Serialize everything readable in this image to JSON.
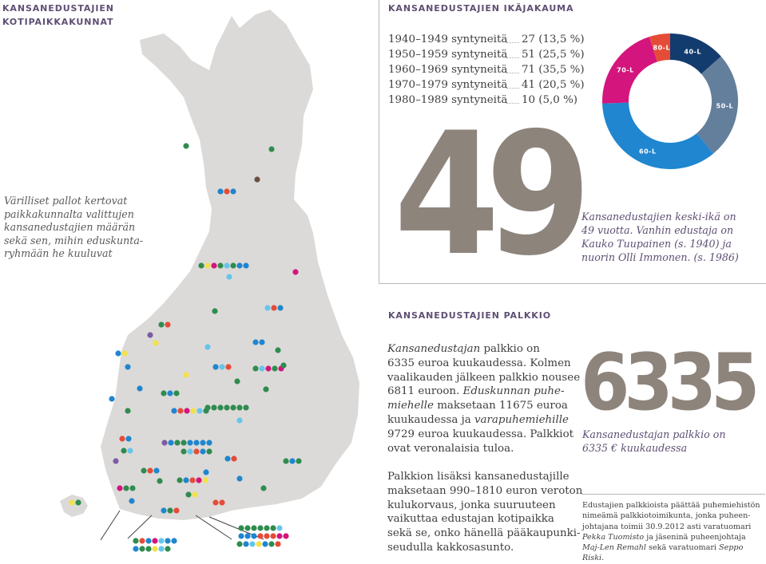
{
  "headers": {
    "residence": [
      "KANSANEDUSTAJIEN",
      "KOTIPAIKKAKUNNAT"
    ],
    "age": "KANSANEDUSTAJIEN IKÄJAKAUMA",
    "pay": "KANSANEDUSTAJIEN PALKKIO"
  },
  "map_caption": [
    "Värilliset pallot kertovat",
    "paikkakunnalta valittujen",
    "kansanedustajien määrän",
    "sekä sen, mihin eduskunta-",
    "ryhmään he kuuluvat"
  ],
  "age_distribution": [
    {
      "label": "1940–1949 syntyneitä",
      "value": "27 (13,5 %)"
    },
    {
      "label": "1950–1959 syntyneitä",
      "value": "51 (25,5 %)"
    },
    {
      "label": "1960–1969 syntyneitä",
      "value": "71 (35,5 %)"
    },
    {
      "label": "1970–1979 syntyneitä",
      "value": "41 (20,5 %)"
    },
    {
      "label": "1980–1989 syntyneitä",
      "value": "10 (5,0 %)"
    }
  ],
  "donut": {
    "segments": [
      {
        "label": "40-L",
        "count": 27,
        "color": "#133c6e"
      },
      {
        "label": "50-L",
        "count": 51,
        "color": "#647f9c"
      },
      {
        "label": "60-L",
        "count": 71,
        "color": "#1f86cf"
      },
      {
        "label": "70-L",
        "count": 41,
        "color": "#d4157d"
      },
      {
        "label": "80-L",
        "count": 10,
        "color": "#e54c38"
      }
    ]
  },
  "average_age": {
    "number": "49",
    "caption": [
      "Kansanedustajien keski-ikä on",
      "49 vuotta. Vanhin edustaja on",
      "Kauko Tuupainen (s. 1940) ja",
      "nuorin Olli Immonen. (s. 1986)"
    ]
  },
  "pay": {
    "paragraph1": [
      {
        "italic": "Kansanedustajan",
        "plain": " palkkio on"
      },
      {
        "italic": "",
        "plain": "6335 euroa kuukaudessa. Kolmen"
      },
      {
        "italic": "",
        "plain": "vaalikauden jälkeen palkkio nousee"
      },
      {
        "italic": "",
        "plain": "6811 euroon. "
      },
      {
        "italic": "Eduskunnan puhe-",
        "plain": ""
      },
      {
        "italic": "miehelle",
        "plain": " maksetaan 11675 euroa"
      },
      {
        "italic": "",
        "plain": "kuukaudessa ja "
      },
      {
        "italic": "",
        "plain": "9729 euroa kuukaudessa. Palkkiot"
      },
      {
        "italic": "",
        "plain": "ovat veronalaisia tuloa."
      }
    ],
    "paragraph1_extra": {
      "vara": "varapuhemiehille"
    },
    "paragraph2": [
      "Palkkion lisäksi kansanedustajille",
      "maksetaan 990–1810 euron veroton",
      "kulukorvaus, jonka suuruuteen",
      "vaikuttaa edustajan kotipaikka",
      "sekä se, onko hänellä pääkaupunki-",
      "seudulla kakkosasunto."
    ],
    "big_number": "6335",
    "big_caption": [
      "Kansanedustajan palkkio on",
      "6335 € kuukaudessa"
    ],
    "footnote": {
      "l1": "Edustajien palkkioista päättää puhemiehistön",
      "l2": "nimeämä palkkiotoimikunta, jonka puheen-",
      "l3": "johtajana toimii 30.9.2012 asti varatuomari",
      "l4_italic": "Pekka Tuomisto",
      "l4_plain": " ja jäseninä puheenjohtaja",
      "l5_italic": "Maj-Len Remahl",
      "l5_plain": " sekä varatuomari ",
      "l5_italic2": "Seppo Riski",
      "l5_end": "."
    }
  },
  "colors": {
    "map_fill": "#dcdad8",
    "header_text": "#5e4f73",
    "big_number": "#8d847c",
    "party_green": "#2f8c4f",
    "party_blue": "#1f86cf",
    "party_red": "#e54c38",
    "party_magenta": "#d4157d",
    "party_yellow": "#f2e14a",
    "party_lightblue": "#67c5ea",
    "party_purple": "#7c5ca2",
    "party_brown": "#6b4f3f"
  }
}
